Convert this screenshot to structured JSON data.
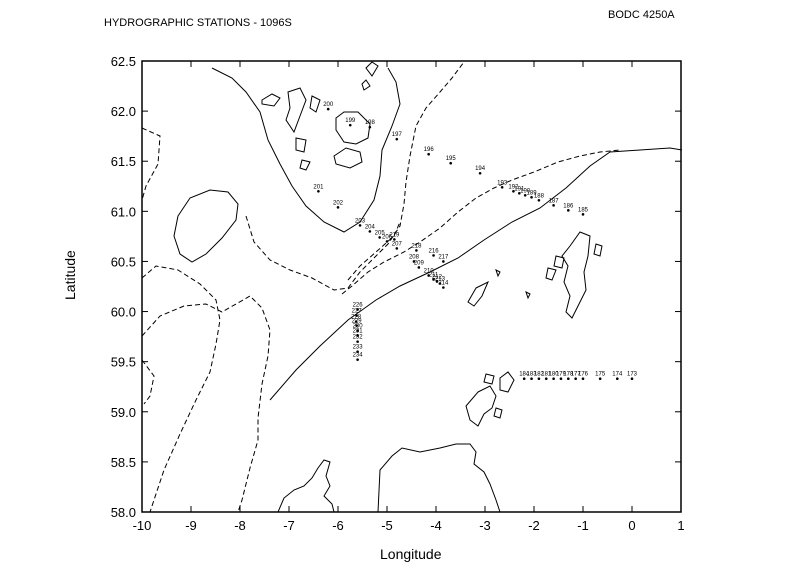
{
  "header": {
    "title": "HYDROGRAPHIC STATIONS - 1096S",
    "reference": "BODC 4250A"
  },
  "chart_data": {
    "type": "scatter",
    "xlabel": "Longitude",
    "ylabel": "Latitude",
    "xlim": [
      -10,
      1
    ],
    "ylim": [
      58.0,
      62.5
    ],
    "x_ticks": [
      "-10",
      "-9",
      "-8",
      "-7",
      "-6",
      "-5",
      "-4",
      "-3",
      "-2",
      "-1",
      "0",
      "1"
    ],
    "y_ticks": [
      "58.0",
      "58.5",
      "59.0",
      "59.5",
      "60.0",
      "60.5",
      "61.0",
      "61.5",
      "62.0",
      "62.5"
    ],
    "stations": [
      {
        "label": "200",
        "lon": -6.2,
        "lat": 62.02
      },
      {
        "label": "199",
        "lon": -5.75,
        "lat": 61.86
      },
      {
        "label": "198",
        "lon": -5.35,
        "lat": 61.84
      },
      {
        "label": "197",
        "lon": -4.8,
        "lat": 61.72
      },
      {
        "label": "196",
        "lon": -4.15,
        "lat": 61.57
      },
      {
        "label": "195",
        "lon": -3.7,
        "lat": 61.48
      },
      {
        "label": "194",
        "lon": -3.1,
        "lat": 61.38
      },
      {
        "label": "193",
        "lon": -2.65,
        "lat": 61.24
      },
      {
        "label": "192",
        "lon": -2.42,
        "lat": 61.2
      },
      {
        "label": "191",
        "lon": -2.3,
        "lat": 61.18
      },
      {
        "label": "190",
        "lon": -2.18,
        "lat": 61.16
      },
      {
        "label": "189",
        "lon": -2.05,
        "lat": 61.14
      },
      {
        "label": "188",
        "lon": -1.9,
        "lat": 61.11
      },
      {
        "label": "187",
        "lon": -1.6,
        "lat": 61.06
      },
      {
        "label": "186",
        "lon": -1.3,
        "lat": 61.01
      },
      {
        "label": "185",
        "lon": -1.0,
        "lat": 60.97
      },
      {
        "label": "201",
        "lon": -6.4,
        "lat": 61.2
      },
      {
        "label": "202",
        "lon": -6.0,
        "lat": 61.04
      },
      {
        "label": "203",
        "lon": -5.55,
        "lat": 60.86
      },
      {
        "label": "204",
        "lon": -5.35,
        "lat": 60.8
      },
      {
        "label": "205",
        "lon": -5.15,
        "lat": 60.74
      },
      {
        "label": "206",
        "lon": -5.0,
        "lat": 60.7
      },
      {
        "label": "219",
        "lon": -4.85,
        "lat": 60.72
      },
      {
        "label": "207",
        "lon": -4.8,
        "lat": 60.63
      },
      {
        "label": "218",
        "lon": -4.4,
        "lat": 60.61
      },
      {
        "label": "216",
        "lon": -4.05,
        "lat": 60.56
      },
      {
        "label": "217",
        "lon": -3.85,
        "lat": 60.5
      },
      {
        "label": "208",
        "lon": -4.45,
        "lat": 60.5
      },
      {
        "label": "209",
        "lon": -4.35,
        "lat": 60.44
      },
      {
        "label": "210",
        "lon": -4.15,
        "lat": 60.36
      },
      {
        "label": "211",
        "lon": -4.05,
        "lat": 60.32
      },
      {
        "label": "212",
        "lon": -3.98,
        "lat": 60.3
      },
      {
        "label": "213",
        "lon": -3.92,
        "lat": 60.28
      },
      {
        "label": "214",
        "lon": -3.85,
        "lat": 60.24
      },
      {
        "label": "226",
        "lon": -5.6,
        "lat": 60.02
      },
      {
        "label": "227",
        "lon": -5.62,
        "lat": 59.96
      },
      {
        "label": "228",
        "lon": -5.63,
        "lat": 59.9
      },
      {
        "label": "229",
        "lon": -5.62,
        "lat": 59.86
      },
      {
        "label": "230",
        "lon": -5.6,
        "lat": 59.81
      },
      {
        "label": "231",
        "lon": -5.6,
        "lat": 59.76
      },
      {
        "label": "232",
        "lon": -5.6,
        "lat": 59.7
      },
      {
        "label": "233",
        "lon": -5.6,
        "lat": 59.6
      },
      {
        "label": "234",
        "lon": -5.6,
        "lat": 59.52
      },
      {
        "label": "184",
        "lon": -2.2,
        "lat": 59.33
      },
      {
        "label": "183",
        "lon": -2.05,
        "lat": 59.33
      },
      {
        "label": "182",
        "lon": -1.9,
        "lat": 59.33
      },
      {
        "label": "181",
        "lon": -1.75,
        "lat": 59.33
      },
      {
        "label": "180",
        "lon": -1.6,
        "lat": 59.33
      },
      {
        "label": "179",
        "lon": -1.45,
        "lat": 59.33
      },
      {
        "label": "178",
        "lon": -1.3,
        "lat": 59.33
      },
      {
        "label": "177",
        "lon": -1.15,
        "lat": 59.33
      },
      {
        "label": "176",
        "lon": -1.0,
        "lat": 59.33
      },
      {
        "label": "175",
        "lon": -0.65,
        "lat": 59.33
      },
      {
        "label": "174",
        "lon": -0.3,
        "lat": 59.33
      },
      {
        "label": "173",
        "lon": 0.0,
        "lat": 59.33
      }
    ]
  }
}
